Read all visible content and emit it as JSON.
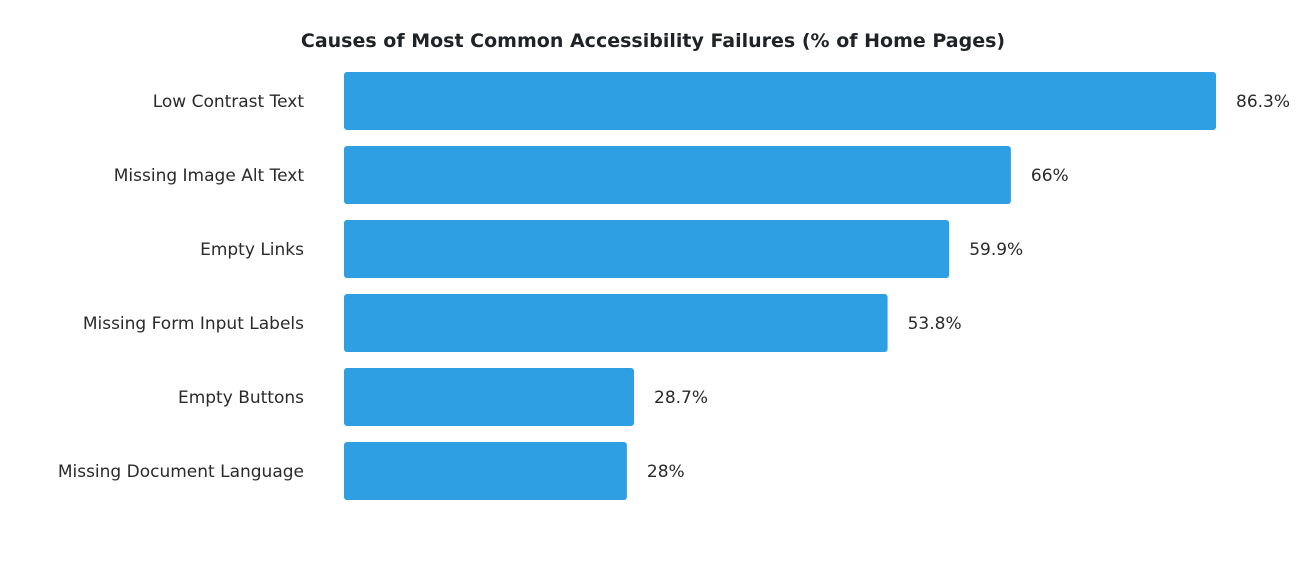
{
  "chart_data": {
    "type": "bar",
    "orientation": "horizontal",
    "title": "Causes of Most Common Accessibility Failures (% of Home Pages)",
    "xlabel": "",
    "ylabel": "",
    "categories": [
      "Low Contrast Text",
      "Missing Image Alt Text",
      "Empty Links",
      "Missing Form Input Labels",
      "Empty Buttons",
      "Missing Document Language"
    ],
    "values": [
      86.3,
      66,
      59.9,
      53.8,
      28.7,
      28
    ],
    "value_labels": [
      "86.3%",
      "66%",
      "59.9%",
      "53.8%",
      "28.7%",
      "28%"
    ],
    "xlim": [
      0,
      86.3
    ],
    "grid": false,
    "legend": "none",
    "bar_color": "#2f9fe3"
  }
}
